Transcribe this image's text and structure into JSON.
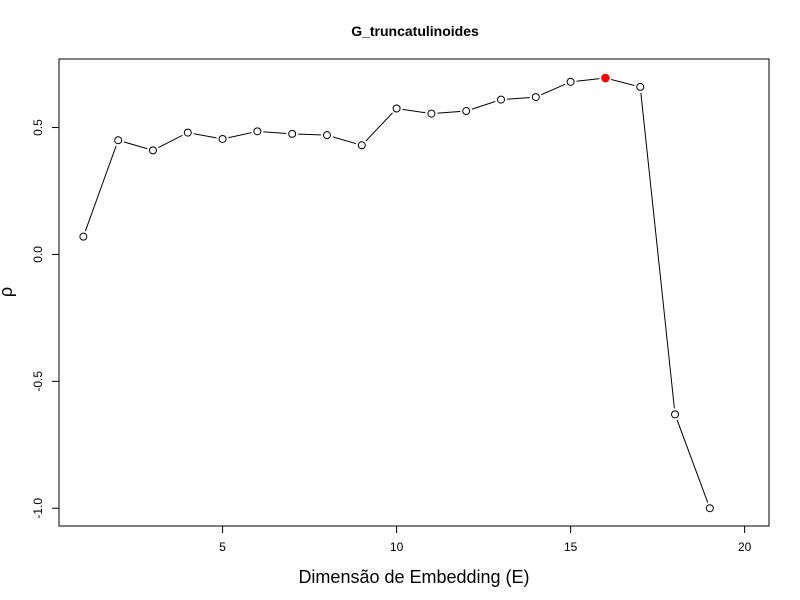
{
  "chart_data": {
    "type": "line",
    "title": "G_truncatulinoides",
    "xlabel": "Dimensão de Embedding (E)",
    "ylabel": "ρ",
    "xlim": [
      0.3,
      20.7
    ],
    "ylim": [
      -1.07,
      0.77
    ],
    "xticks": [
      5,
      10,
      15,
      20
    ],
    "yticks": [
      -1.0,
      -0.5,
      0.0,
      0.5
    ],
    "ytick_labels": [
      "-1.0",
      "-0.5",
      "0.0",
      "0.5"
    ],
    "grid": false,
    "series": [
      {
        "x": [
          1,
          2,
          3,
          4,
          5,
          6,
          7,
          8,
          9,
          10,
          11,
          12,
          13,
          14,
          15,
          16,
          17,
          18,
          19
        ],
        "y": [
          0.07,
          0.45,
          0.41,
          0.48,
          0.455,
          0.485,
          0.475,
          0.47,
          0.43,
          0.575,
          0.555,
          0.565,
          0.61,
          0.62,
          0.68,
          0.695,
          0.66,
          -0.63,
          -1.0
        ]
      }
    ],
    "highlight": {
      "x": 16,
      "y": 0.695,
      "color": "#ff0000"
    },
    "line_color": "#000000",
    "marker_fill": "#ffffff"
  }
}
